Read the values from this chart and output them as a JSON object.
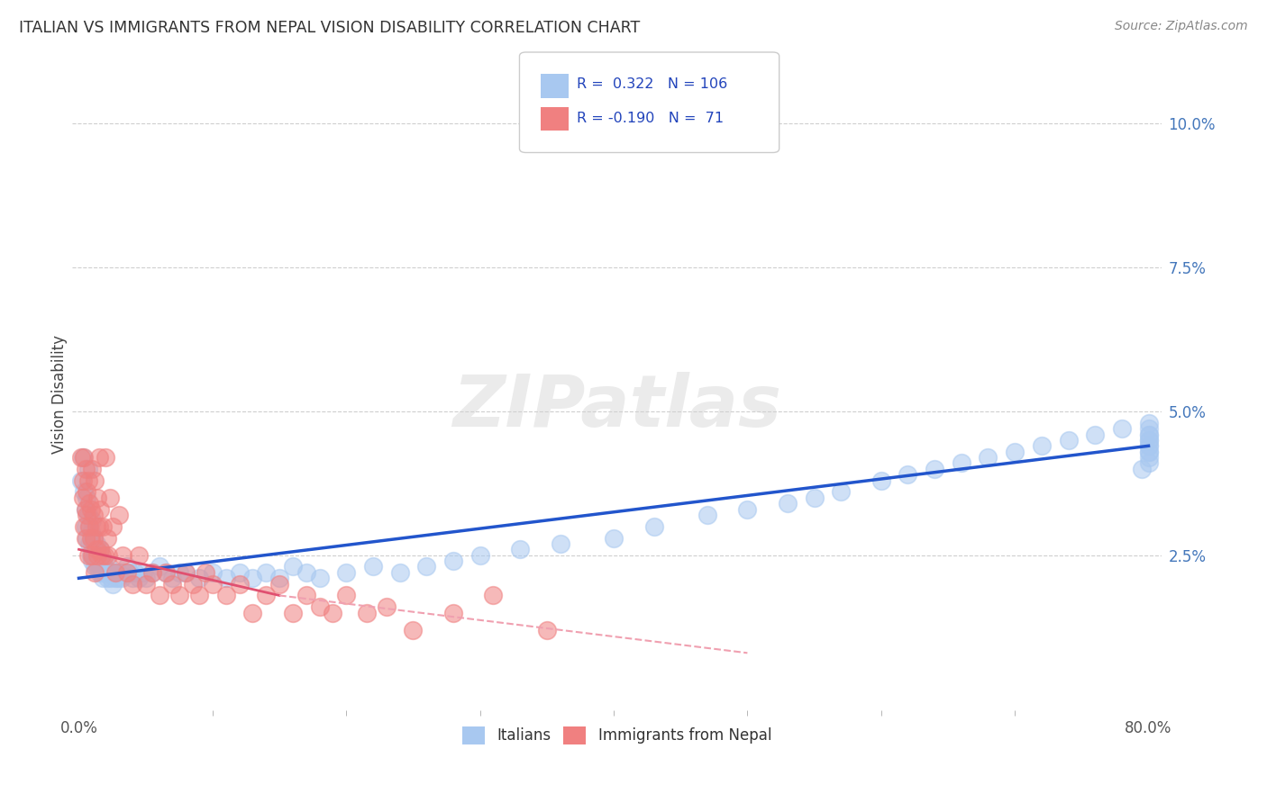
{
  "title": "ITALIAN VS IMMIGRANTS FROM NEPAL VISION DISABILITY CORRELATION CHART",
  "source": "Source: ZipAtlas.com",
  "ylabel": "Vision Disability",
  "xlim": [
    -0.005,
    0.81
  ],
  "ylim": [
    -0.002,
    0.108
  ],
  "yticks_right": [
    0.025,
    0.05,
    0.075,
    0.1
  ],
  "yticklabels_right": [
    "2.5%",
    "5.0%",
    "7.5%",
    "10.0%"
  ],
  "blue_color": "#A8C8F0",
  "pink_color": "#F08080",
  "trendline_blue": "#2255CC",
  "trendline_pink": "#E05070",
  "trendline_pink_dashed": "#F0A0B0",
  "background": "#FFFFFF",
  "grid_color": "#BBBBBB",
  "italians_x": [
    0.002,
    0.003,
    0.004,
    0.005,
    0.005,
    0.006,
    0.006,
    0.007,
    0.007,
    0.008,
    0.008,
    0.009,
    0.009,
    0.01,
    0.01,
    0.01,
    0.011,
    0.011,
    0.012,
    0.012,
    0.013,
    0.013,
    0.014,
    0.014,
    0.015,
    0.015,
    0.016,
    0.016,
    0.017,
    0.018,
    0.018,
    0.019,
    0.02,
    0.021,
    0.022,
    0.023,
    0.024,
    0.025,
    0.026,
    0.027,
    0.028,
    0.029,
    0.03,
    0.032,
    0.034,
    0.036,
    0.038,
    0.04,
    0.042,
    0.045,
    0.048,
    0.05,
    0.055,
    0.06,
    0.065,
    0.07,
    0.075,
    0.08,
    0.09,
    0.1,
    0.11,
    0.12,
    0.13,
    0.14,
    0.15,
    0.16,
    0.17,
    0.18,
    0.2,
    0.22,
    0.24,
    0.26,
    0.28,
    0.3,
    0.33,
    0.36,
    0.4,
    0.43,
    0.47,
    0.5,
    0.53,
    0.55,
    0.57,
    0.6,
    0.62,
    0.64,
    0.66,
    0.68,
    0.7,
    0.72,
    0.74,
    0.76,
    0.78,
    0.795,
    0.8,
    0.8,
    0.8,
    0.8,
    0.8,
    0.8,
    0.8,
    0.8,
    0.8,
    0.8,
    0.8,
    0.8
  ],
  "italians_y": [
    0.038,
    0.042,
    0.036,
    0.033,
    0.03,
    0.035,
    0.028,
    0.032,
    0.04,
    0.027,
    0.03,
    0.025,
    0.029,
    0.024,
    0.027,
    0.031,
    0.025,
    0.028,
    0.023,
    0.026,
    0.024,
    0.027,
    0.023,
    0.026,
    0.022,
    0.025,
    0.023,
    0.026,
    0.022,
    0.024,
    0.021,
    0.023,
    0.022,
    0.021,
    0.023,
    0.022,
    0.021,
    0.02,
    0.022,
    0.021,
    0.022,
    0.021,
    0.022,
    0.021,
    0.022,
    0.023,
    0.022,
    0.021,
    0.022,
    0.021,
    0.022,
    0.021,
    0.022,
    0.023,
    0.022,
    0.021,
    0.022,
    0.022,
    0.021,
    0.022,
    0.021,
    0.022,
    0.021,
    0.022,
    0.021,
    0.023,
    0.022,
    0.021,
    0.022,
    0.023,
    0.022,
    0.023,
    0.024,
    0.025,
    0.026,
    0.027,
    0.028,
    0.03,
    0.032,
    0.033,
    0.034,
    0.035,
    0.036,
    0.038,
    0.039,
    0.04,
    0.041,
    0.042,
    0.043,
    0.044,
    0.045,
    0.046,
    0.047,
    0.04,
    0.042,
    0.045,
    0.043,
    0.041,
    0.044,
    0.046,
    0.048,
    0.045,
    0.047,
    0.044,
    0.046,
    0.043
  ],
  "nepal_x": [
    0.002,
    0.003,
    0.003,
    0.004,
    0.004,
    0.005,
    0.005,
    0.005,
    0.006,
    0.006,
    0.007,
    0.007,
    0.008,
    0.008,
    0.009,
    0.009,
    0.01,
    0.01,
    0.011,
    0.011,
    0.012,
    0.012,
    0.013,
    0.013,
    0.014,
    0.014,
    0.015,
    0.015,
    0.016,
    0.016,
    0.017,
    0.018,
    0.019,
    0.02,
    0.021,
    0.022,
    0.023,
    0.025,
    0.027,
    0.03,
    0.033,
    0.036,
    0.04,
    0.045,
    0.05,
    0.055,
    0.06,
    0.065,
    0.07,
    0.075,
    0.08,
    0.085,
    0.09,
    0.095,
    0.1,
    0.11,
    0.12,
    0.13,
    0.14,
    0.15,
    0.16,
    0.17,
    0.18,
    0.19,
    0.2,
    0.215,
    0.23,
    0.25,
    0.28,
    0.31,
    0.35
  ],
  "nepal_y": [
    0.042,
    0.038,
    0.035,
    0.042,
    0.03,
    0.04,
    0.033,
    0.028,
    0.036,
    0.032,
    0.038,
    0.025,
    0.034,
    0.03,
    0.028,
    0.033,
    0.025,
    0.04,
    0.032,
    0.028,
    0.038,
    0.022,
    0.03,
    0.026,
    0.035,
    0.025,
    0.03,
    0.042,
    0.026,
    0.033,
    0.025,
    0.03,
    0.025,
    0.042,
    0.028,
    0.025,
    0.035,
    0.03,
    0.022,
    0.032,
    0.025,
    0.022,
    0.02,
    0.025,
    0.02,
    0.022,
    0.018,
    0.022,
    0.02,
    0.018,
    0.022,
    0.02,
    0.018,
    0.022,
    0.02,
    0.018,
    0.02,
    0.015,
    0.018,
    0.02,
    0.015,
    0.018,
    0.016,
    0.015,
    0.018,
    0.015,
    0.016,
    0.012,
    0.015,
    0.018,
    0.012
  ],
  "blue_trendline_x0": 0.0,
  "blue_trendline_y0": 0.021,
  "blue_trendline_x1": 0.8,
  "blue_trendline_y1": 0.044,
  "pink_trendline_x0": 0.0,
  "pink_trendline_y0": 0.026,
  "pink_trendline_x1_solid": 0.15,
  "pink_trendline_y1_solid": 0.018,
  "pink_trendline_x1_dashed": 0.5,
  "pink_trendline_y1_dashed": 0.008
}
